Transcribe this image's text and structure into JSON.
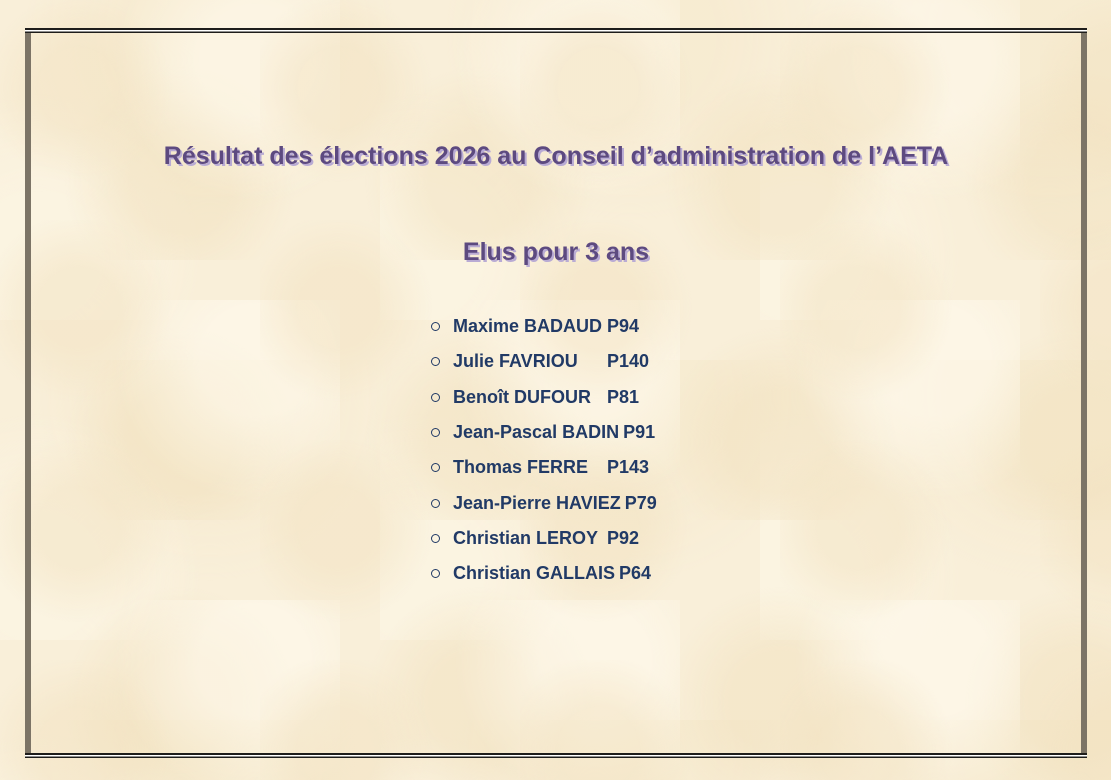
{
  "slide": {
    "title": "Résultat des élections 2026 au Conseil d’administration de l’AETA",
    "subtitle": "Elus pour 3 ans",
    "members": [
      {
        "name": "Maxime BADAUD",
        "number": "P94"
      },
      {
        "name": "Julie FAVRIOU",
        "number": "P140"
      },
      {
        "name": "Benoît DUFOUR",
        "number": "P81"
      },
      {
        "name": "Jean-Pascal BADIN",
        "number": "P91"
      },
      {
        "name": "Thomas FERRE",
        "number": "P143"
      },
      {
        "name": "Jean-Pierre HAVIEZ",
        "number": "P79"
      },
      {
        "name": "Christian LEROY",
        "number": "P92"
      },
      {
        "name": "Christian GALLAIS",
        "number": "P64"
      }
    ],
    "colors": {
      "heading_purple": "#5d4a80",
      "heading_shadow": "#b9abd4",
      "list_navy": "#213a66",
      "background_cream": "#f9efd9",
      "frame_side_gray": "#7c7466",
      "frame_line_black": "#1e1d1b"
    }
  }
}
